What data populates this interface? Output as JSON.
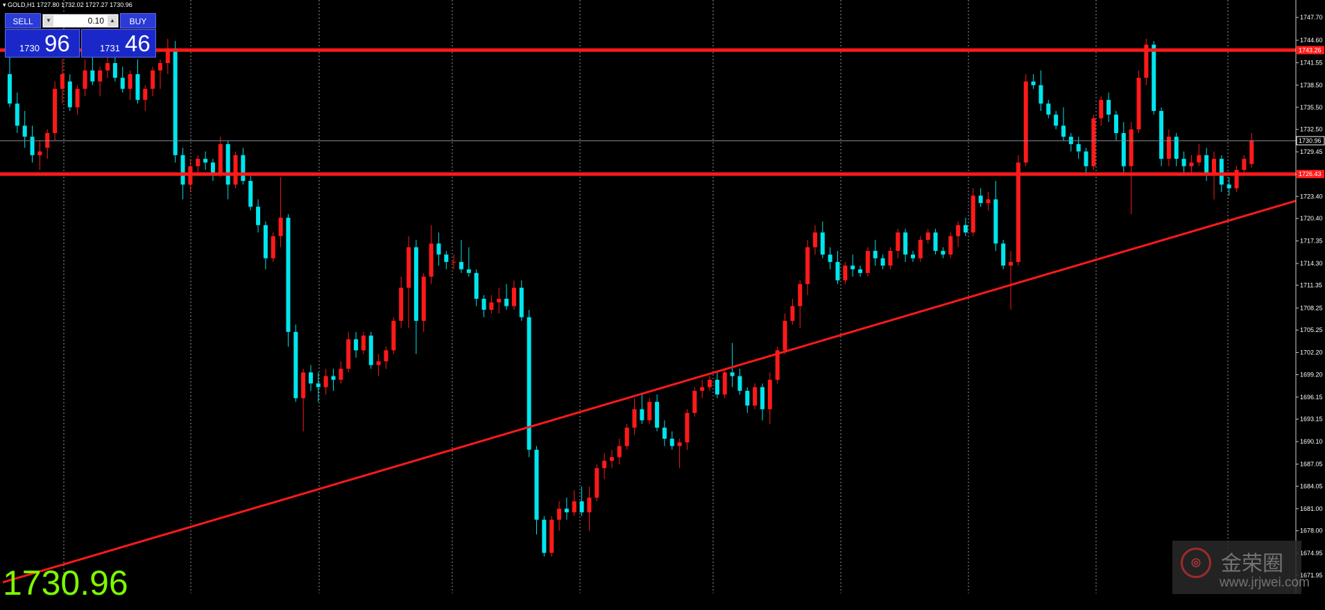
{
  "header": {
    "symbol": "GOLD,H1",
    "ohlc": "1727.80 1732.02 1727.27 1730.96"
  },
  "trade_panel": {
    "sell_label": "SELL",
    "buy_label": "BUY",
    "lot_value": "0.10",
    "sell_price_small": "1730",
    "sell_price_big": "96",
    "buy_price_small": "1731",
    "buy_price_big": "46"
  },
  "big_price": "1730.96",
  "watermark": {
    "name": "金荣圈",
    "url": "www.jrjwei.com"
  },
  "colors": {
    "bull": "#00e5ee",
    "bear": "#ff1a1a",
    "line": "#ff1a1a",
    "grid": "#9a9a9a",
    "big_price": "#7cfc00"
  },
  "chart_data": {
    "type": "candlestick",
    "y_ticks": [
      "1747.70",
      "1744.60",
      "1741.55",
      "1738.50",
      "1735.50",
      "1732.50",
      "1729.45",
      "1726.40",
      "1723.40",
      "1720.40",
      "1717.35",
      "1714.30",
      "1711.35",
      "1708.25",
      "1705.25",
      "1702.20",
      "1699.20",
      "1696.15",
      "1693.15",
      "1690.10",
      "1687.05",
      "1684.05",
      "1681.00",
      "1678.00",
      "1674.95",
      "1671.95"
    ],
    "ylim": [
      1669.5,
      1749.5
    ],
    "current_price": 1730.96,
    "current_label": "1730.96",
    "horizontal_levels": [
      {
        "price": 1743.26,
        "label": "1743.26"
      },
      {
        "price": 1726.43,
        "label": "1726.43"
      }
    ],
    "trendline": {
      "from": [
        0,
        1671.0
      ],
      "to": [
        160,
        1719.5
      ]
    },
    "candles": [
      [
        1740.0,
        1742.5,
        1735.5,
        1736.0
      ],
      [
        1736.0,
        1737.5,
        1732.0,
        1733.0
      ],
      [
        1733.0,
        1735.0,
        1730.0,
        1731.5
      ],
      [
        1731.5,
        1733.0,
        1728.0,
        1729.0
      ],
      [
        1729.0,
        1731.0,
        1727.0,
        1729.5
      ],
      [
        1730.0,
        1732.5,
        1728.5,
        1732.0
      ],
      [
        1732.0,
        1739.0,
        1731.0,
        1738.0
      ],
      [
        1738.0,
        1742.0,
        1736.0,
        1740.0
      ],
      [
        1739.0,
        1740.0,
        1735.0,
        1735.5
      ],
      [
        1735.5,
        1738.5,
        1734.5,
        1738.0
      ],
      [
        1738.0,
        1742.0,
        1737.0,
        1740.5
      ],
      [
        1740.5,
        1743.0,
        1738.5,
        1739.0
      ],
      [
        1739.0,
        1741.0,
        1737.0,
        1740.5
      ],
      [
        1740.5,
        1742.5,
        1739.5,
        1741.5
      ],
      [
        1741.5,
        1743.5,
        1739.0,
        1739.5
      ],
      [
        1739.5,
        1741.0,
        1737.5,
        1738.0
      ],
      [
        1738.0,
        1740.5,
        1736.5,
        1740.0
      ],
      [
        1740.0,
        1742.0,
        1736.0,
        1736.5
      ],
      [
        1736.5,
        1738.5,
        1735.0,
        1738.0
      ],
      [
        1738.0,
        1741.0,
        1737.0,
        1740.5
      ],
      [
        1740.5,
        1742.0,
        1738.0,
        1741.5
      ],
      [
        1741.5,
        1744.8,
        1740.0,
        1743.5
      ],
      [
        1743.5,
        1744.5,
        1728.0,
        1729.0
      ],
      [
        1729.0,
        1730.0,
        1723.0,
        1725.0
      ],
      [
        1725.0,
        1728.5,
        1724.0,
        1727.5
      ],
      [
        1727.5,
        1729.0,
        1726.5,
        1728.5
      ],
      [
        1728.5,
        1729.5,
        1727.0,
        1728.0
      ],
      [
        1728.0,
        1728.5,
        1725.5,
        1726.5
      ],
      [
        1726.5,
        1731.5,
        1726.0,
        1730.5
      ],
      [
        1730.5,
        1731.0,
        1723.0,
        1725.0
      ],
      [
        1725.0,
        1729.5,
        1724.5,
        1729.0
      ],
      [
        1729.0,
        1730.0,
        1725.0,
        1725.5
      ],
      [
        1725.5,
        1726.5,
        1721.5,
        1722.0
      ],
      [
        1722.0,
        1723.0,
        1718.5,
        1719.5
      ],
      [
        1719.5,
        1720.0,
        1713.5,
        1715.0
      ],
      [
        1715.0,
        1718.5,
        1714.5,
        1718.0
      ],
      [
        1718.0,
        1726.0,
        1716.5,
        1720.5
      ],
      [
        1720.5,
        1721.0,
        1703.0,
        1705.0
      ],
      [
        1705.0,
        1706.0,
        1695.5,
        1696.0
      ],
      [
        1696.0,
        1700.0,
        1691.5,
        1699.5
      ],
      [
        1699.5,
        1700.5,
        1697.0,
        1698.0
      ],
      [
        1698.0,
        1699.5,
        1695.5,
        1697.5
      ],
      [
        1697.5,
        1700.0,
        1696.5,
        1699.0
      ],
      [
        1699.0,
        1700.0,
        1697.0,
        1698.5
      ],
      [
        1698.5,
        1701.0,
        1698.0,
        1700.0
      ],
      [
        1700.0,
        1705.0,
        1699.5,
        1704.0
      ],
      [
        1704.0,
        1705.0,
        1701.5,
        1702.5
      ],
      [
        1702.5,
        1705.0,
        1702.0,
        1704.5
      ],
      [
        1704.5,
        1705.0,
        1700.0,
        1700.5
      ],
      [
        1700.5,
        1702.0,
        1699.0,
        1701.0
      ],
      [
        1701.0,
        1703.0,
        1700.0,
        1702.5
      ],
      [
        1702.5,
        1707.0,
        1702.0,
        1706.5
      ],
      [
        1706.5,
        1712.5,
        1705.5,
        1711.0
      ],
      [
        1711.0,
        1718.0,
        1705.5,
        1716.5
      ],
      [
        1716.5,
        1717.5,
        1702.0,
        1706.5
      ],
      [
        1706.5,
        1713.0,
        1705.0,
        1712.5
      ],
      [
        1712.5,
        1719.5,
        1711.5,
        1717.0
      ],
      [
        1717.0,
        1718.5,
        1714.0,
        1715.5
      ],
      [
        1715.5,
        1716.0,
        1713.5,
        1714.5
      ],
      [
        1714.5,
        1715.5,
        1713.5,
        1714.5
      ],
      [
        1714.5,
        1717.5,
        1713.0,
        1713.5
      ],
      [
        1713.5,
        1716.5,
        1712.5,
        1713.0
      ],
      [
        1713.0,
        1713.5,
        1708.5,
        1709.5
      ],
      [
        1709.5,
        1710.0,
        1707.0,
        1708.0
      ],
      [
        1708.0,
        1710.0,
        1707.5,
        1709.0
      ],
      [
        1709.0,
        1711.0,
        1707.5,
        1709.5
      ],
      [
        1709.5,
        1711.5,
        1708.0,
        1708.5
      ],
      [
        1708.5,
        1712.0,
        1708.0,
        1711.0
      ],
      [
        1711.0,
        1712.0,
        1706.5,
        1707.0
      ],
      [
        1707.0,
        1708.0,
        1688.0,
        1689.0
      ],
      [
        1689.0,
        1689.5,
        1677.5,
        1679.5
      ],
      [
        1679.5,
        1680.0,
        1674.5,
        1675.0
      ],
      [
        1675.0,
        1680.0,
        1674.5,
        1679.5
      ],
      [
        1679.5,
        1682.0,
        1678.0,
        1681.0
      ],
      [
        1681.0,
        1682.5,
        1679.5,
        1680.5
      ],
      [
        1680.5,
        1683.5,
        1680.0,
        1682.0
      ],
      [
        1682.0,
        1684.0,
        1680.0,
        1680.5
      ],
      [
        1680.5,
        1684.0,
        1678.0,
        1682.5
      ],
      [
        1682.5,
        1687.0,
        1682.0,
        1686.5
      ],
      [
        1686.5,
        1688.5,
        1685.0,
        1687.5
      ],
      [
        1687.5,
        1689.0,
        1686.5,
        1688.0
      ],
      [
        1688.0,
        1690.5,
        1687.0,
        1689.5
      ],
      [
        1689.5,
        1692.5,
        1689.0,
        1692.0
      ],
      [
        1692.0,
        1696.0,
        1691.0,
        1694.5
      ],
      [
        1694.5,
        1696.5,
        1692.5,
        1693.0
      ],
      [
        1693.0,
        1696.0,
        1692.5,
        1695.5
      ],
      [
        1695.5,
        1696.5,
        1691.5,
        1692.0
      ],
      [
        1692.0,
        1693.0,
        1689.5,
        1690.5
      ],
      [
        1690.5,
        1691.5,
        1689.0,
        1689.5
      ],
      [
        1689.5,
        1690.5,
        1686.5,
        1690.0
      ],
      [
        1690.0,
        1694.5,
        1689.0,
        1694.0
      ],
      [
        1694.0,
        1697.5,
        1693.5,
        1697.0
      ],
      [
        1697.0,
        1698.5,
        1696.0,
        1697.5
      ],
      [
        1697.5,
        1699.0,
        1697.0,
        1698.5
      ],
      [
        1698.5,
        1699.5,
        1696.0,
        1696.5
      ],
      [
        1696.5,
        1700.0,
        1696.0,
        1699.5
      ],
      [
        1699.5,
        1703.5,
        1697.5,
        1699.0
      ],
      [
        1699.0,
        1700.0,
        1696.5,
        1697.0
      ],
      [
        1697.0,
        1697.5,
        1694.0,
        1695.0
      ],
      [
        1695.0,
        1698.0,
        1694.5,
        1697.5
      ],
      [
        1697.5,
        1698.0,
        1693.0,
        1694.5
      ],
      [
        1694.5,
        1699.5,
        1692.5,
        1698.5
      ],
      [
        1698.5,
        1703.0,
        1698.0,
        1702.5
      ],
      [
        1702.5,
        1707.5,
        1702.0,
        1706.5
      ],
      [
        1706.5,
        1709.5,
        1706.0,
        1708.5
      ],
      [
        1708.5,
        1712.0,
        1705.5,
        1711.5
      ],
      [
        1711.5,
        1717.5,
        1710.0,
        1716.5
      ],
      [
        1716.5,
        1719.5,
        1715.5,
        1718.5
      ],
      [
        1718.5,
        1720.0,
        1715.0,
        1715.5
      ],
      [
        1715.5,
        1716.5,
        1713.5,
        1714.5
      ],
      [
        1714.5,
        1716.0,
        1711.5,
        1712.0
      ],
      [
        1712.0,
        1714.5,
        1711.5,
        1714.0
      ],
      [
        1714.0,
        1715.5,
        1712.5,
        1713.5
      ],
      [
        1713.5,
        1714.0,
        1712.5,
        1713.0
      ],
      [
        1713.0,
        1716.5,
        1712.5,
        1716.0
      ],
      [
        1716.0,
        1717.5,
        1714.0,
        1715.0
      ],
      [
        1715.0,
        1715.5,
        1713.5,
        1714.0
      ],
      [
        1714.0,
        1716.5,
        1713.5,
        1716.0
      ],
      [
        1716.0,
        1719.0,
        1715.0,
        1718.5
      ],
      [
        1718.5,
        1719.0,
        1714.5,
        1715.5
      ],
      [
        1715.5,
        1716.0,
        1714.5,
        1715.0
      ],
      [
        1715.0,
        1718.0,
        1714.5,
        1717.5
      ],
      [
        1717.5,
        1719.0,
        1717.0,
        1718.5
      ],
      [
        1718.5,
        1719.0,
        1715.5,
        1716.0
      ],
      [
        1716.0,
        1716.5,
        1715.0,
        1715.5
      ],
      [
        1715.5,
        1718.5,
        1715.0,
        1718.0
      ],
      [
        1718.0,
        1720.0,
        1716.5,
        1719.5
      ],
      [
        1719.5,
        1720.5,
        1718.0,
        1718.5
      ],
      [
        1718.5,
        1724.5,
        1718.0,
        1723.5
      ],
      [
        1723.5,
        1724.5,
        1722.0,
        1722.5
      ],
      [
        1722.5,
        1724.0,
        1721.5,
        1723.0
      ],
      [
        1723.0,
        1725.5,
        1716.0,
        1717.0
      ],
      [
        1717.0,
        1717.5,
        1713.5,
        1714.0
      ],
      [
        1714.0,
        1716.0,
        1708.0,
        1714.5
      ],
      [
        1714.5,
        1729.0,
        1714.0,
        1728.0
      ],
      [
        1728.0,
        1740.0,
        1727.5,
        1739.0
      ],
      [
        1739.0,
        1740.0,
        1738.0,
        1738.5
      ],
      [
        1738.5,
        1740.5,
        1735.0,
        1736.0
      ],
      [
        1736.0,
        1736.5,
        1734.0,
        1734.5
      ],
      [
        1734.5,
        1735.0,
        1732.5,
        1733.0
      ],
      [
        1733.0,
        1735.5,
        1731.0,
        1731.5
      ],
      [
        1731.5,
        1732.0,
        1729.5,
        1730.5
      ],
      [
        1730.5,
        1731.5,
        1728.5,
        1729.5
      ],
      [
        1729.5,
        1730.0,
        1726.5,
        1727.5
      ],
      [
        1727.5,
        1734.5,
        1727.0,
        1734.0
      ],
      [
        1734.0,
        1737.0,
        1733.0,
        1736.5
      ],
      [
        1736.5,
        1737.5,
        1733.5,
        1734.5
      ],
      [
        1734.5,
        1735.0,
        1731.0,
        1732.0
      ],
      [
        1732.0,
        1733.5,
        1726.5,
        1727.5
      ],
      [
        1727.5,
        1733.5,
        1721.0,
        1732.5
      ],
      [
        1732.5,
        1740.5,
        1732.0,
        1739.5
      ],
      [
        1739.5,
        1744.8,
        1738.5,
        1744.0
      ],
      [
        1744.0,
        1744.5,
        1734.5,
        1735.0
      ],
      [
        1735.0,
        1735.5,
        1727.5,
        1728.5
      ],
      [
        1728.5,
        1732.5,
        1727.5,
        1731.5
      ],
      [
        1731.5,
        1732.0,
        1727.5,
        1728.5
      ],
      [
        1728.5,
        1729.5,
        1726.5,
        1727.5
      ],
      [
        1727.5,
        1729.0,
        1726.5,
        1728.0
      ],
      [
        1728.0,
        1730.5,
        1727.5,
        1729.0
      ],
      [
        1729.0,
        1730.0,
        1725.5,
        1726.5
      ],
      [
        1726.5,
        1729.5,
        1723.0,
        1728.5
      ],
      [
        1728.5,
        1729.0,
        1724.0,
        1725.0
      ],
      [
        1725.0,
        1726.0,
        1723.5,
        1724.5
      ],
      [
        1724.5,
        1727.5,
        1724.0,
        1727.0
      ],
      [
        1727.0,
        1729.0,
        1726.5,
        1728.5
      ],
      [
        1727.8,
        1732.0,
        1727.3,
        1730.96
      ]
    ]
  }
}
